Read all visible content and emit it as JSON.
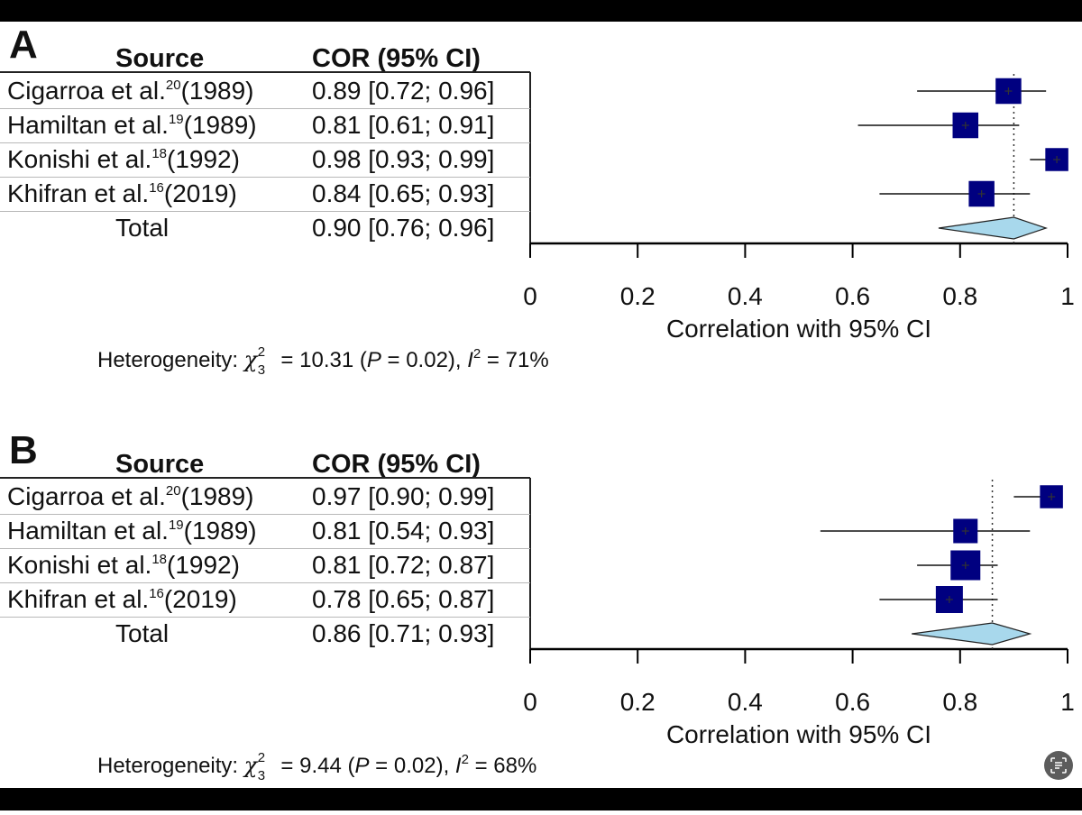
{
  "colors": {
    "square_fill": "#000080",
    "diamond_fill": "#a8d8ec",
    "line": "#111111",
    "frame": "#000000"
  },
  "chart_data": [
    {
      "type": "forest",
      "panel_label": "A",
      "col_source": "Source",
      "col_cor": "COR (95% CI)",
      "studies": [
        {
          "name": "Cigarroa et al.",
          "ref": "20",
          "year": "(1989)",
          "cor_text": "0.89 [0.72; 0.96]",
          "est": 0.89,
          "lo": 0.72,
          "hi": 0.96,
          "weight": 0.95
        },
        {
          "name": "Hamiltan et al.",
          "ref": "19",
          "year": "(1989)",
          "cor_text": "0.81 [0.61; 0.91]",
          "est": 0.81,
          "lo": 0.61,
          "hi": 0.91,
          "weight": 0.95
        },
        {
          "name": "Konishi et al.",
          "ref": "18",
          "year": "(1992)",
          "cor_text": "0.98 [0.93; 0.99]",
          "est": 0.98,
          "lo": 0.93,
          "hi": 0.99,
          "weight": 0.85
        },
        {
          "name": "Khifran et al.",
          "ref": "16",
          "year": "(2019)",
          "cor_text": "0.84 [0.65; 0.93]",
          "est": 0.84,
          "lo": 0.65,
          "hi": 0.93,
          "weight": 0.95
        }
      ],
      "total": {
        "label": "Total",
        "cor_text": "0.90 [0.76; 0.96]",
        "est": 0.9,
        "lo": 0.76,
        "hi": 0.96
      },
      "xlim": [
        0,
        1
      ],
      "x_ticks": [
        "0",
        "0.2",
        "0.4",
        "0.6",
        "0.8",
        "1"
      ],
      "x_tick_values": [
        0,
        0.2,
        0.4,
        0.6,
        0.8,
        1
      ],
      "xlabel": "Correlation with 95% CI",
      "heterogeneity": {
        "prefix": "Heterogeneity: ",
        "chi_symbol": "χ",
        "chi_sup": "2",
        "chi_sub": "3",
        "chi_value": " = 10.31 (",
        "p_label": "P",
        "p_value": " = 0.02), ",
        "i_label": "I",
        "i_sup": "2",
        "i_value": " = 71%"
      }
    },
    {
      "type": "forest",
      "panel_label": "B",
      "col_source": "Source",
      "col_cor": "COR (95% CI)",
      "studies": [
        {
          "name": "Cigarroa et al.",
          "ref": "20",
          "year": "(1989)",
          "cor_text": "0.97 [0.90; 0.99]",
          "est": 0.97,
          "lo": 0.9,
          "hi": 0.99,
          "weight": 0.85
        },
        {
          "name": "Hamiltan et al.",
          "ref": "19",
          "year": "(1989)",
          "cor_text": "0.81 [0.54; 0.93]",
          "est": 0.81,
          "lo": 0.54,
          "hi": 0.93,
          "weight": 0.9
        },
        {
          "name": "Konishi et al.",
          "ref": "18",
          "year": "(1992)",
          "cor_text": "0.81 [0.72; 0.87]",
          "est": 0.81,
          "lo": 0.72,
          "hi": 0.87,
          "weight": 1.1
        },
        {
          "name": "Khifran et al.",
          "ref": "16",
          "year": "(2019)",
          "cor_text": "0.78 [0.65; 0.87]",
          "est": 0.78,
          "lo": 0.65,
          "hi": 0.87,
          "weight": 1.0
        }
      ],
      "total": {
        "label": "Total",
        "cor_text": "0.86 [0.71; 0.93]",
        "est": 0.86,
        "lo": 0.71,
        "hi": 0.93
      },
      "xlim": [
        0,
        1
      ],
      "x_ticks": [
        "0",
        "0.2",
        "0.4",
        "0.6",
        "0.8",
        "1"
      ],
      "x_tick_values": [
        0,
        0.2,
        0.4,
        0.6,
        0.8,
        1
      ],
      "xlabel": "Correlation with 95% CI",
      "heterogeneity": {
        "prefix": "Heterogeneity: ",
        "chi_symbol": "χ",
        "chi_sup": "2",
        "chi_sub": "3",
        "chi_value": " = 9.44 (",
        "p_label": "P",
        "p_value": " = 0.02), ",
        "i_label": "I",
        "i_sup": "2",
        "i_value": " = 68%"
      }
    }
  ],
  "corner_button_icon": "text-scan-icon"
}
